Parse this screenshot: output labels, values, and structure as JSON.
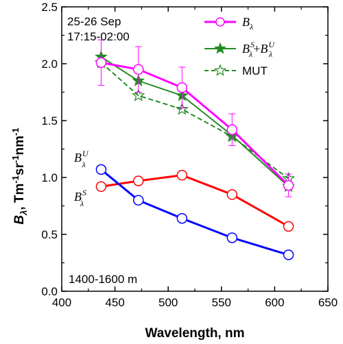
{
  "chart_data": {
    "type": "line",
    "xlabel": "Wavelength, nm",
    "ylabel_symbol": "B",
    "ylabel_sub": "λ",
    "ylabel_units": ", Tm",
    "ylabel_units_parts": [
      "-1",
      "sr",
      "-1",
      "nm",
      "-1"
    ],
    "xlim": [
      400,
      650
    ],
    "ylim": [
      0.0,
      2.5
    ],
    "xticks": [
      400,
      450,
      500,
      550,
      600,
      650
    ],
    "yticks": [
      "0.0",
      "0.5",
      "1.0",
      "1.5",
      "2.0",
      "2.5"
    ],
    "annotations": {
      "date": "25-26 Sep",
      "time": "17:15-02:00",
      "altitude": "1400-1600 m",
      "bu_label": "B",
      "bu_sup": "U",
      "bu_sub": "λ",
      "bs_label": "B",
      "bs_sup": "S",
      "bs_sub": "λ"
    },
    "legend": {
      "position": "top-right",
      "entries": [
        {
          "main": "B",
          "sub": "λ"
        },
        {
          "main": "B",
          "sub": "λ",
          "sup": "S",
          "plus": "+",
          "main2": "B",
          "sup2": "U",
          "sub2": "λ"
        },
        {
          "main": "MUT"
        }
      ]
    },
    "series": [
      {
        "key": "b_lambda",
        "color": "#ff00ff",
        "marker": "circle-open",
        "line": "solid",
        "x": [
          437,
          472,
          513,
          560,
          613
        ],
        "y": [
          2.01,
          1.95,
          1.79,
          1.42,
          0.93
        ],
        "err": [
          0.2,
          0.2,
          0.18,
          0.14,
          0.1
        ]
      },
      {
        "key": "bs_plus_bu",
        "color": "#228b22",
        "marker": "star-filled",
        "line": "solid",
        "x": [
          437,
          472,
          513,
          560,
          613
        ],
        "y": [
          2.06,
          1.85,
          1.72,
          1.37,
          0.92
        ]
      },
      {
        "key": "mut",
        "color": "#228b22",
        "marker": "star-open",
        "line": "dashed",
        "x": [
          437,
          472,
          513,
          560,
          613
        ],
        "y": [
          2.01,
          1.72,
          1.6,
          1.36,
          0.99
        ]
      },
      {
        "key": "bu",
        "color": "#ff0000",
        "marker": "circle-open",
        "line": "solid",
        "x": [
          437,
          472,
          513,
          560,
          613
        ],
        "y": [
          0.92,
          0.97,
          1.02,
          0.85,
          0.57
        ]
      },
      {
        "key": "bs",
        "color": "#0000ff",
        "marker": "circle-open",
        "line": "solid",
        "x": [
          437,
          472,
          513,
          560,
          613
        ],
        "y": [
          1.07,
          0.8,
          0.64,
          0.47,
          0.32
        ]
      }
    ]
  }
}
